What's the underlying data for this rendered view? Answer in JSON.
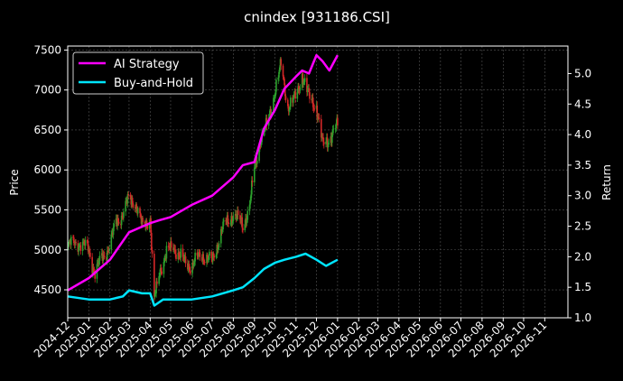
{
  "chart_data": {
    "type": "line",
    "title": "cnindex [931186.CSI]",
    "xlabel": "",
    "ylabel": "Price",
    "ylabel_right": "Return",
    "x_ticks": [
      "2024-12",
      "2025-01",
      "2025-02",
      "2025-03",
      "2025-04",
      "2025-05",
      "2025-06",
      "2025-07",
      "2025-08",
      "2025-09",
      "2025-10",
      "2025-11",
      "2025-12",
      "2026-01",
      "2026-02",
      "2026-03",
      "2026-04",
      "2026-05",
      "2026-06",
      "2026-07",
      "2026-08",
      "2026-09",
      "2026-10",
      "2026-11"
    ],
    "xlim": [
      "2024-12-01",
      "2026-12-05"
    ],
    "ylim_left": [
      4150,
      7550
    ],
    "ylim_right": [
      1.0,
      5.45
    ],
    "y_ticks_left": [
      4500,
      5000,
      5500,
      6000,
      6500,
      7000,
      7500
    ],
    "y_ticks_right": [
      1.0,
      1.5,
      2.0,
      2.5,
      3.0,
      3.5,
      4.0,
      4.5,
      5.0
    ],
    "y_tick_labels_right": [
      "1.0",
      "1.5",
      "2.0",
      "2.5",
      "3.0",
      "3.5",
      "4.0",
      "4.5",
      "5.0"
    ],
    "grid": true,
    "legend_position": "top-left",
    "colors": {
      "up": "#2ca02c",
      "down": "#d62728",
      "ai": "#ff00ff",
      "bh": "#00e5ff",
      "background": "#000000",
      "grid": "#555555"
    },
    "price_series": {
      "name": "",
      "x": [
        "2024-12-01",
        "2024-12-15",
        "2025-01-01",
        "2025-01-10",
        "2025-01-20",
        "2025-02-01",
        "2025-02-10",
        "2025-02-20",
        "2025-03-01",
        "2025-03-10",
        "2025-03-20",
        "2025-04-01",
        "2025-04-07",
        "2025-04-15",
        "2025-04-25",
        "2025-05-05",
        "2025-05-20",
        "2025-06-01",
        "2025-06-15",
        "2025-07-01",
        "2025-07-15",
        "2025-08-01",
        "2025-08-15",
        "2025-08-25",
        "2025-09-01",
        "2025-09-10",
        "2025-09-20",
        "2025-10-01",
        "2025-10-10",
        "2025-10-20",
        "2025-11-01",
        "2025-11-10",
        "2025-11-20",
        "2025-12-01",
        "2025-12-10",
        "2025-12-20",
        "2026-01-01"
      ],
      "values": [
        5050,
        5100,
        5000,
        4700,
        4900,
        5050,
        5350,
        5450,
        5650,
        5600,
        5300,
        5400,
        4350,
        4750,
        4950,
        5050,
        4850,
        4800,
        4950,
        4850,
        5250,
        5450,
        5300,
        5550,
        6000,
        6400,
        6550,
        7000,
        7300,
        6800,
        6900,
        7200,
        6900,
        6800,
        6300,
        6400,
        6550
      ]
    },
    "series": [
      {
        "name": "AI Strategy",
        "x": [
          "2024-12-01",
          "2025-01-01",
          "2025-02-01",
          "2025-03-01",
          "2025-04-01",
          "2025-04-15",
          "2025-05-01",
          "2025-06-01",
          "2025-07-01",
          "2025-08-01",
          "2025-08-15",
          "2025-09-01",
          "2025-09-15",
          "2025-10-01",
          "2025-10-15",
          "2025-11-01",
          "2025-11-10",
          "2025-11-20",
          "2025-12-01",
          "2025-12-10",
          "2025-12-20",
          "2026-01-01"
        ],
        "values": [
          1.45,
          1.65,
          1.95,
          2.4,
          2.55,
          2.6,
          2.65,
          2.85,
          3.0,
          3.3,
          3.5,
          3.55,
          4.1,
          4.4,
          4.75,
          4.95,
          5.05,
          5.0,
          5.3,
          5.2,
          5.05,
          5.3
        ]
      },
      {
        "name": "Buy-and-Hold",
        "x": [
          "2024-12-01",
          "2025-01-01",
          "2025-02-01",
          "2025-02-20",
          "2025-03-01",
          "2025-03-20",
          "2025-04-01",
          "2025-04-07",
          "2025-04-20",
          "2025-05-01",
          "2025-06-01",
          "2025-07-01",
          "2025-08-01",
          "2025-08-15",
          "2025-09-01",
          "2025-09-15",
          "2025-10-01",
          "2025-10-15",
          "2025-11-01",
          "2025-11-15",
          "2025-12-01",
          "2025-12-15",
          "2026-01-01"
        ],
        "values": [
          1.35,
          1.3,
          1.3,
          1.35,
          1.45,
          1.4,
          1.4,
          1.2,
          1.3,
          1.3,
          1.3,
          1.35,
          1.45,
          1.5,
          1.65,
          1.8,
          1.9,
          1.95,
          2.0,
          2.05,
          1.95,
          1.85,
          1.95
        ]
      }
    ]
  }
}
